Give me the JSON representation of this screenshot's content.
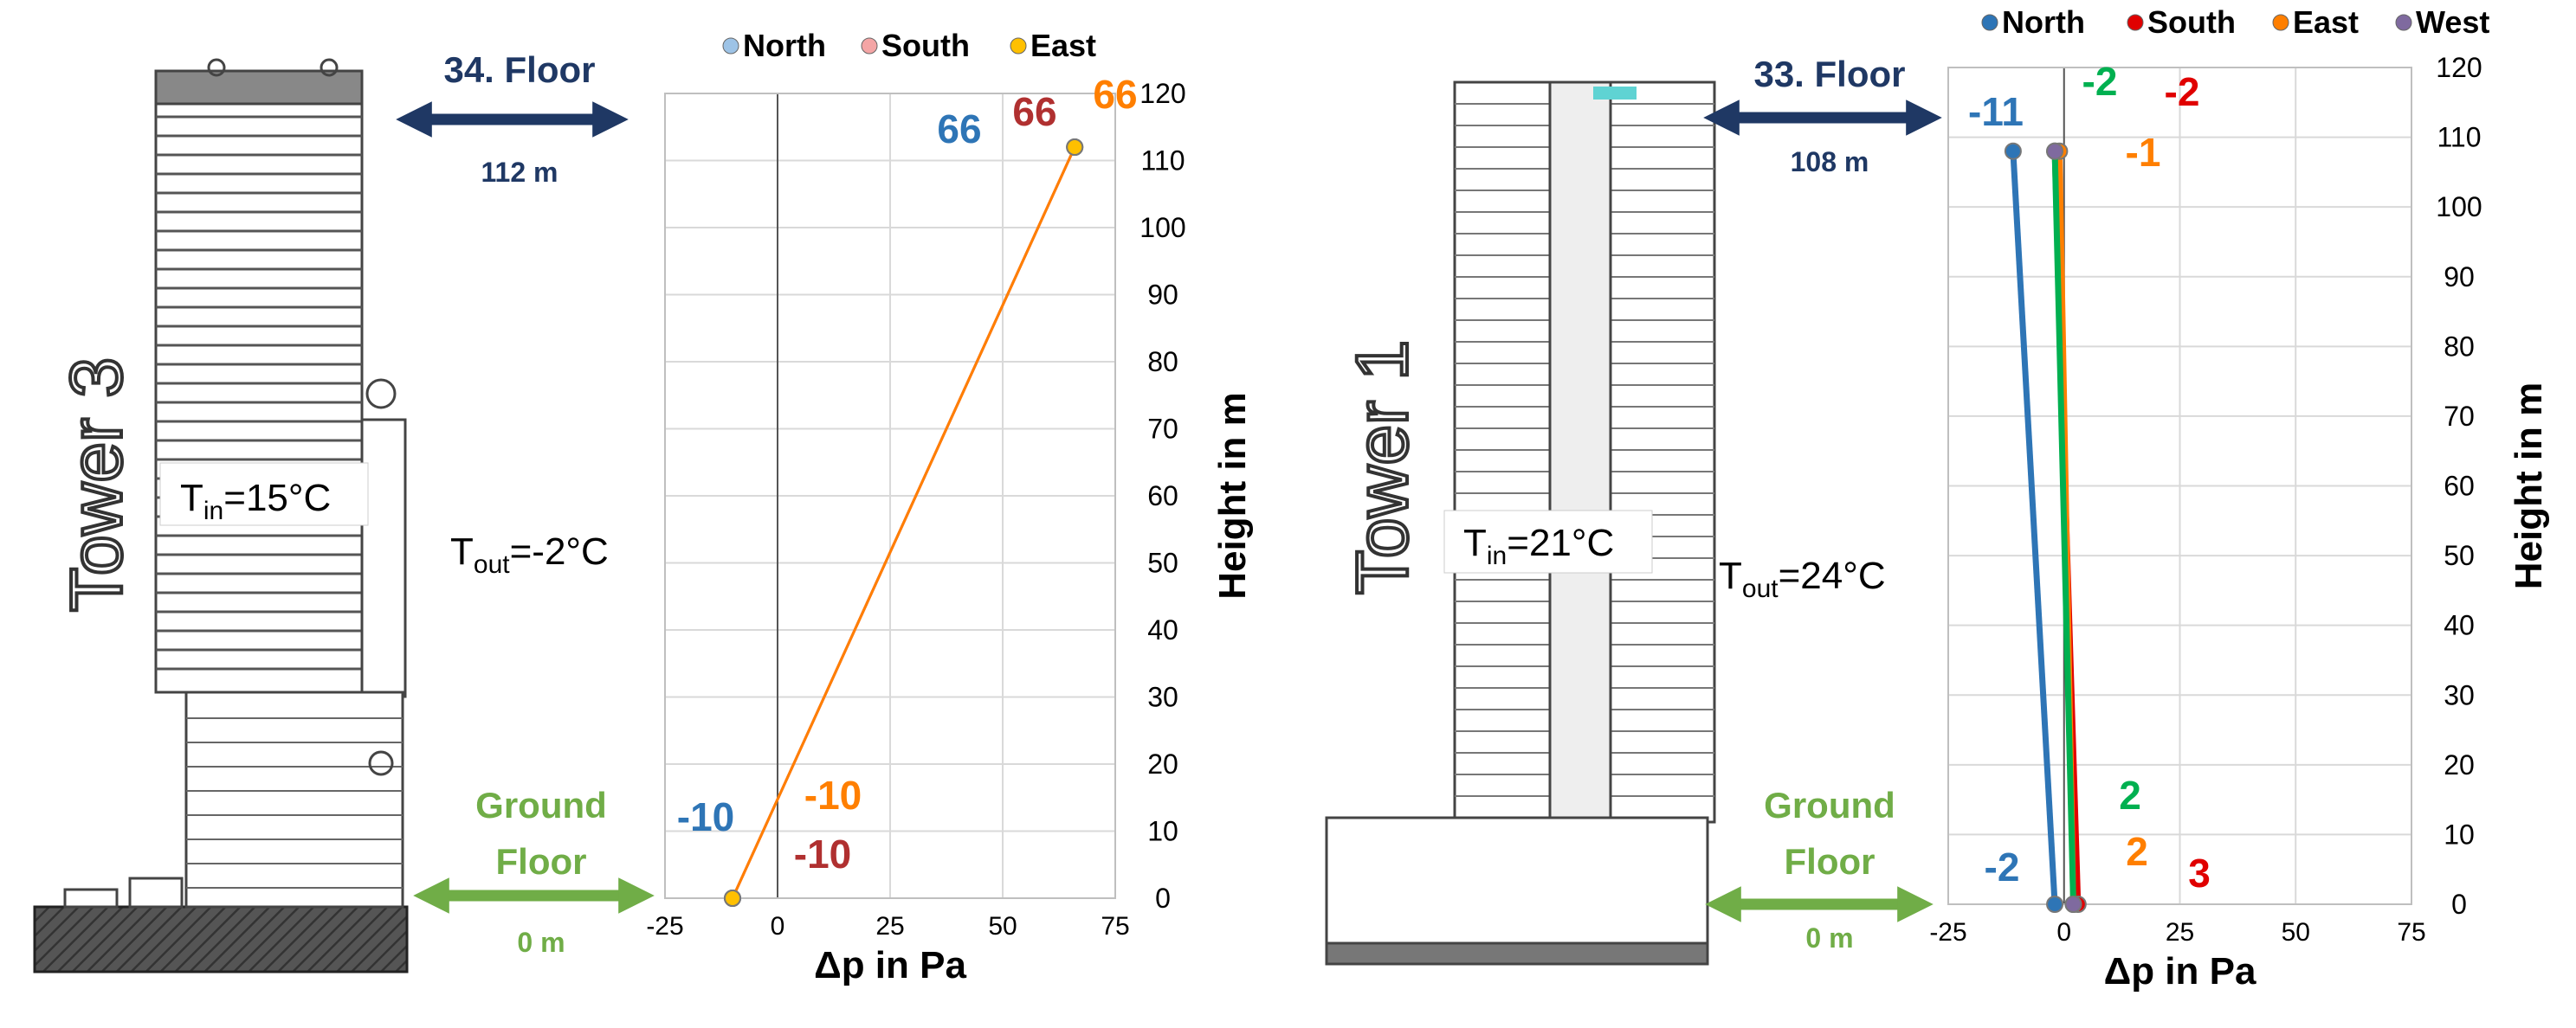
{
  "colors": {
    "navy": "#1F3864",
    "green": "#70AD47",
    "blue": "#2E75B6",
    "red": "#E00000",
    "darkred": "#B03030",
    "orange": "#FF7F00",
    "pink": "#F4A5A5",
    "gold": "#FFC000",
    "dgreen": "#00B050",
    "purple": "#7F6A9F",
    "grid": "#d9d9d9",
    "building": "#444444"
  },
  "left_panel": {
    "tower_label": "Tower 3",
    "top_floor_label": "34. Floor",
    "top_floor_height": "112 m",
    "ground_label_1": "Ground",
    "ground_label_2": "Floor",
    "ground_height": "0 m",
    "t_in_main": "T",
    "t_in_sub": "in",
    "t_in_value": "=15°C",
    "t_out_main": "T",
    "t_out_sub": "out",
    "t_out_value": "=-2°C"
  },
  "right_panel": {
    "tower_label": "Tower 1",
    "top_floor_label": "33. Floor",
    "top_floor_height": "108 m",
    "ground_label_1": "Ground",
    "ground_label_2": "Floor",
    "ground_height": "0 m",
    "t_in_main": "T",
    "t_in_sub": "in",
    "t_in_value": "=21°C",
    "t_out_main": "T",
    "t_out_sub": "out",
    "t_out_value": "=24°C"
  },
  "chart_data": [
    {
      "type": "line",
      "title": "",
      "xlabel": "Δp in Pa",
      "ylabel": "Height in m",
      "xlim": [
        -25,
        75
      ],
      "ylim": [
        0,
        120
      ],
      "xticks": [
        -25,
        0,
        25,
        50,
        75
      ],
      "yticks": [
        0,
        10,
        20,
        30,
        40,
        50,
        60,
        70,
        80,
        90,
        100,
        110,
        120
      ],
      "legend": "top",
      "series": [
        {
          "name": "North",
          "points": [
            [
              -10,
              0
            ],
            [
              66,
              112
            ]
          ],
          "bottom_label": "-10",
          "top_label": "66"
        },
        {
          "name": "South",
          "points": [
            [
              -10,
              0
            ],
            [
              66,
              112
            ]
          ],
          "bottom_label": "-10",
          "top_label": "66"
        },
        {
          "name": "East",
          "points": [
            [
              -10,
              0
            ],
            [
              66,
              112
            ]
          ],
          "bottom_label": "-10",
          "top_label": "66"
        }
      ]
    },
    {
      "type": "line",
      "title": "",
      "xlabel": "Δp in Pa",
      "ylabel": "Height in m",
      "xlim": [
        -25,
        75
      ],
      "ylim": [
        0,
        120
      ],
      "xticks": [
        -25,
        0,
        25,
        50,
        75
      ],
      "yticks": [
        0,
        10,
        20,
        30,
        40,
        50,
        60,
        70,
        80,
        90,
        100,
        110,
        120
      ],
      "legend": "top",
      "series": [
        {
          "name": "North",
          "points": [
            [
              -2,
              0
            ],
            [
              -11,
              108
            ]
          ],
          "bottom_label": "-2",
          "top_label": "-11"
        },
        {
          "name": "South",
          "points": [
            [
              3,
              0
            ],
            [
              -2,
              108
            ]
          ],
          "bottom_label": "3",
          "top_label": "-2"
        },
        {
          "name": "East",
          "points": [
            [
              2,
              0
            ],
            [
              -1,
              108
            ]
          ],
          "bottom_label": "2",
          "top_label": "-1"
        },
        {
          "name": "West",
          "points": [
            [
              2,
              0
            ],
            [
              -2,
              108
            ]
          ],
          "bottom_label": "2",
          "top_label": "-2"
        }
      ]
    }
  ]
}
